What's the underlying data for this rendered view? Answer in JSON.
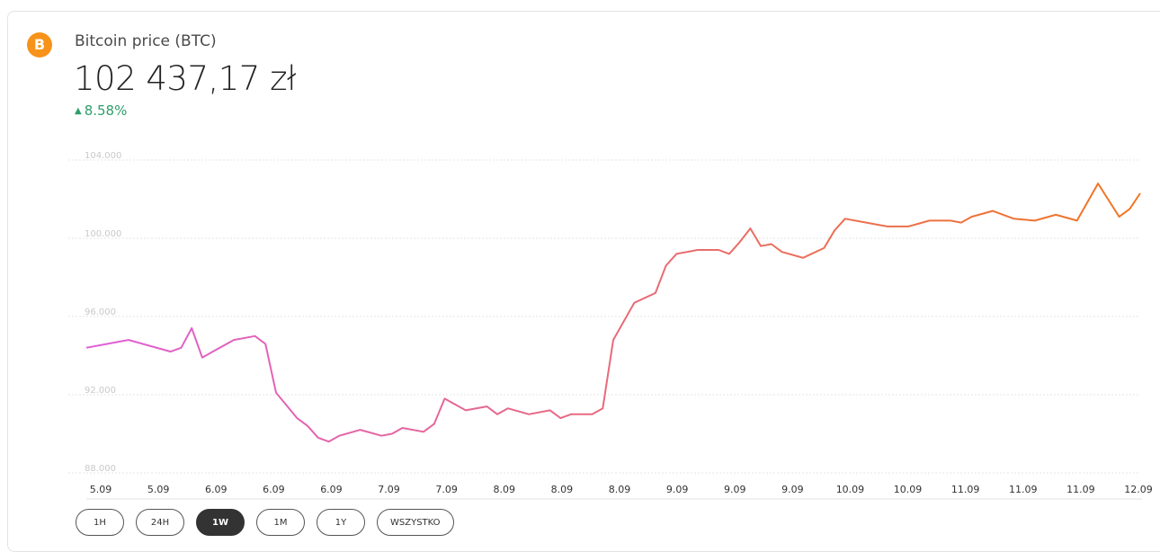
{
  "asset": {
    "name": "Bitcoin price (BTC)",
    "icon": "bitcoin-icon",
    "icon_glyph": "B",
    "price": "102 437,17 zł",
    "change": "8.58%",
    "change_direction": "up",
    "colors": {
      "brand": "#f7931a",
      "positive": "#2e9e6b",
      "line_start": "#e05fd6",
      "line_end": "#f0761f"
    }
  },
  "ranges": [
    {
      "label": "1H",
      "active": false
    },
    {
      "label": "24H",
      "active": false
    },
    {
      "label": "1W",
      "active": true
    },
    {
      "label": "1M",
      "active": false
    },
    {
      "label": "1Y",
      "active": false
    },
    {
      "label": "WSZYSTKO",
      "active": false
    }
  ],
  "chart_data": {
    "type": "line",
    "title": "",
    "xlabel": "",
    "ylabel": "",
    "ylim": [
      88000,
      104000
    ],
    "grid": true,
    "y_ticks": [
      "104.000",
      "100.000",
      "96.000",
      "92.000",
      "88.000"
    ],
    "y_tick_values": [
      104000,
      100000,
      96000,
      92000,
      88000
    ],
    "x_ticks": [
      "5.09",
      "5.09",
      "6.09",
      "6.09",
      "6.09",
      "7.09",
      "7.09",
      "8.09",
      "8.09",
      "8.09",
      "9.09",
      "9.09",
      "9.09",
      "10.09",
      "10.09",
      "11.09",
      "11.09",
      "11.09",
      "12.09"
    ],
    "x_range": [
      0,
      100
    ],
    "series": [
      {
        "x": [
          0,
          2,
          4,
          6,
          8,
          9,
          10,
          11,
          12,
          14,
          16,
          17,
          18,
          20,
          21,
          22,
          23,
          24,
          26,
          28,
          29,
          30,
          32,
          33,
          34,
          36,
          38,
          39,
          40,
          42,
          44,
          45,
          46,
          48,
          49,
          50,
          52,
          54,
          55,
          56,
          58,
          60,
          61,
          62,
          63,
          64,
          65,
          66,
          68,
          70,
          71,
          72,
          74,
          76,
          78,
          80,
          82,
          83,
          84,
          86,
          88,
          90,
          92,
          94,
          96,
          98,
          99,
          100
        ],
        "y": [
          94400,
          94600,
          94800,
          94500,
          94200,
          94400,
          95400,
          93900,
          94200,
          94800,
          95000,
          94600,
          92100,
          90800,
          90400,
          89800,
          89600,
          89900,
          90200,
          89900,
          90000,
          90300,
          90100,
          90500,
          91800,
          91200,
          91400,
          91000,
          91300,
          91000,
          91200,
          90800,
          91000,
          91000,
          91300,
          94800,
          96700,
          97200,
          98600,
          99200,
          99400,
          99400,
          99200,
          99800,
          100500,
          99600,
          99700,
          99300,
          99000,
          99500,
          100400,
          101000,
          100800,
          100600,
          100600,
          100900,
          100900,
          100800,
          101100,
          101400,
          101000,
          100900,
          101200,
          100900,
          102800,
          101100,
          101500,
          102300
        ]
      }
    ]
  }
}
